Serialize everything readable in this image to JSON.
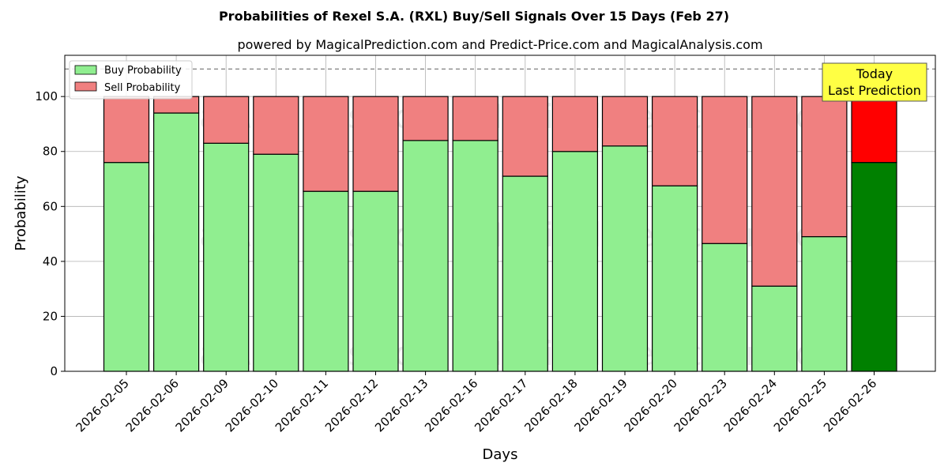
{
  "chart_data": {
    "type": "bar",
    "stacked": true,
    "title": "Probabilities of Rexel S.A. (RXL) Buy/Sell Signals Over 15 Days (Feb 27)",
    "subtitle": "powered by MagicalPrediction.com and Predict-Price.com and MagicalAnalysis.com",
    "xlabel": "Days",
    "ylabel": "Probability",
    "ylim": [
      0,
      115
    ],
    "yticks": [
      0,
      20,
      40,
      60,
      80,
      100
    ],
    "reference_line": 110,
    "grid": true,
    "legend_position": "top-left",
    "categories": [
      "2026-02-05",
      "2026-02-06",
      "2026-02-09",
      "2026-02-10",
      "2026-02-11",
      "2026-02-12",
      "2026-02-13",
      "2026-02-16",
      "2026-02-17",
      "2026-02-18",
      "2026-02-19",
      "2026-02-20",
      "2026-02-23",
      "2026-02-24",
      "2026-02-25",
      "2026-02-26"
    ],
    "series": [
      {
        "name": "Buy Probability",
        "color": "#90ee90",
        "highlight_color": "#008000",
        "values": [
          76,
          94,
          83,
          79,
          65.5,
          65.5,
          84,
          84,
          71,
          80,
          82,
          67.5,
          46.5,
          31,
          49,
          76
        ]
      },
      {
        "name": "Sell Probability",
        "color": "#f08080",
        "highlight_color": "#ff0000",
        "values": [
          24,
          6,
          17,
          21,
          34.5,
          34.5,
          16,
          16,
          29,
          20,
          18,
          32.5,
          53.5,
          69,
          51,
          24
        ]
      }
    ],
    "annotation": {
      "line1": "Today",
      "line2": "Last Prediction",
      "color": "#ffff44"
    },
    "watermarks": [
      "MagicalAnalysis.com",
      "MagicalPrediction.com"
    ]
  }
}
